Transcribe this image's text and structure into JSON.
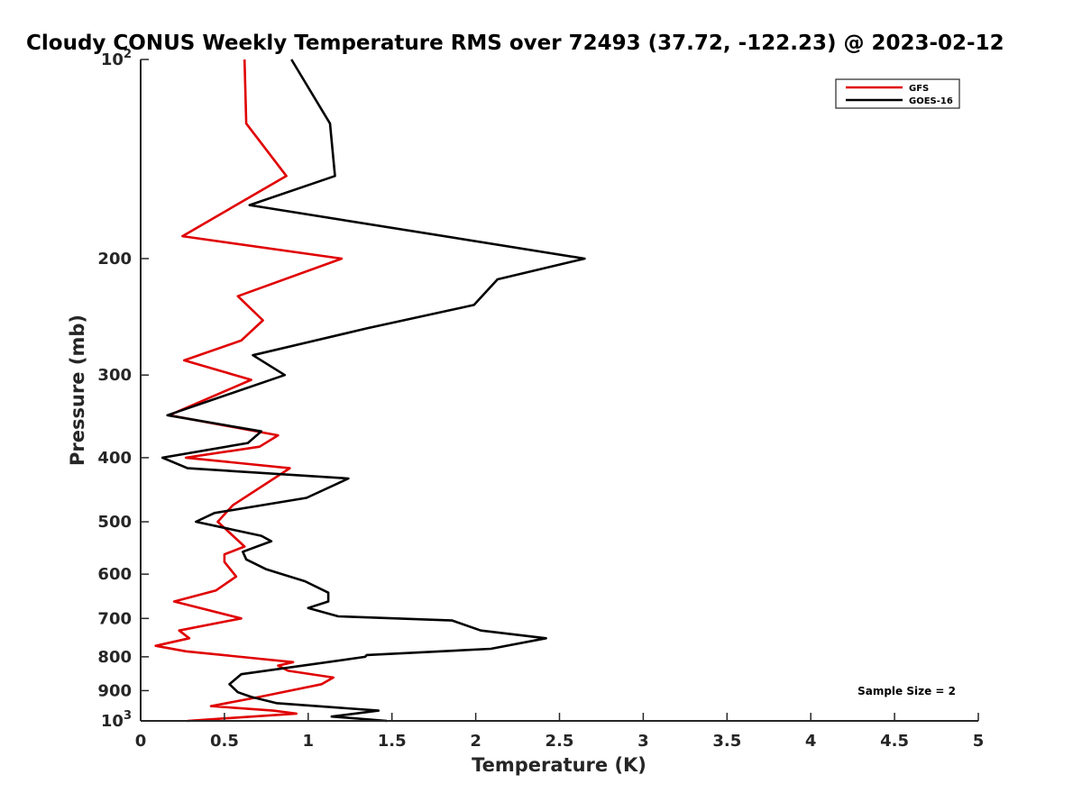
{
  "chart_data": {
    "type": "line",
    "title": "Cloudy CONUS Weekly Temperature RMS over 72493 (37.72, -122.23) @ 2023-02-12",
    "xlabel": "Temperature (K)",
    "ylabel": "Pressure (mb)",
    "xlim": [
      0,
      5
    ],
    "ylim": [
      100,
      1000
    ],
    "yscale": "log",
    "y_reversed": true,
    "grid": false,
    "legend_position": "top-right",
    "x_ticks": [
      {
        "value": 0,
        "label": "0"
      },
      {
        "value": 0.5,
        "label": "0.5"
      },
      {
        "value": 1,
        "label": "1"
      },
      {
        "value": 1.5,
        "label": "1.5"
      },
      {
        "value": 2,
        "label": "2"
      },
      {
        "value": 2.5,
        "label": "2.5"
      },
      {
        "value": 3,
        "label": "3"
      },
      {
        "value": 3.5,
        "label": "3.5"
      },
      {
        "value": 4,
        "label": "4"
      },
      {
        "value": 4.5,
        "label": "4.5"
      },
      {
        "value": 5,
        "label": "5"
      }
    ],
    "y_ticks": [
      {
        "value": 100,
        "label": "10",
        "sup": "2"
      },
      {
        "value": 200,
        "label": "200"
      },
      {
        "value": 300,
        "label": "300"
      },
      {
        "value": 400,
        "label": "400"
      },
      {
        "value": 500,
        "label": "500"
      },
      {
        "value": 600,
        "label": "600"
      },
      {
        "value": 700,
        "label": "700"
      },
      {
        "value": 800,
        "label": "800"
      },
      {
        "value": 900,
        "label": "900"
      },
      {
        "value": 1000,
        "label": "10",
        "sup": "3"
      }
    ],
    "series": [
      {
        "name": "GFS",
        "color": "#e00000",
        "points": [
          [
            0.62,
            100
          ],
          [
            0.63,
            125
          ],
          [
            0.87,
            150
          ],
          [
            0.5,
            170
          ],
          [
            0.25,
            185
          ],
          [
            1.2,
            200
          ],
          [
            0.58,
            228
          ],
          [
            0.73,
            248
          ],
          [
            0.6,
            266
          ],
          [
            0.26,
            285
          ],
          [
            0.66,
            305
          ],
          [
            0.17,
            345
          ],
          [
            0.82,
            370
          ],
          [
            0.71,
            385
          ],
          [
            0.27,
            400
          ],
          [
            0.89,
            415
          ],
          [
            0.55,
            472
          ],
          [
            0.46,
            500
          ],
          [
            0.62,
            545
          ],
          [
            0.5,
            560
          ],
          [
            0.5,
            575
          ],
          [
            0.57,
            605
          ],
          [
            0.45,
            635
          ],
          [
            0.2,
            660
          ],
          [
            0.6,
            700
          ],
          [
            0.23,
            730
          ],
          [
            0.29,
            750
          ],
          [
            0.09,
            770
          ],
          [
            0.27,
            785
          ],
          [
            0.91,
            815
          ],
          [
            0.82,
            825
          ],
          [
            0.88,
            840
          ],
          [
            1.15,
            860
          ],
          [
            1.08,
            880
          ],
          [
            0.71,
            920
          ],
          [
            0.42,
            950
          ],
          [
            0.79,
            965
          ],
          [
            0.93,
            975
          ],
          [
            0.28,
            1000
          ]
        ]
      },
      {
        "name": "GOES-16",
        "color": "#000000",
        "points": [
          [
            0.9,
            100
          ],
          [
            1.13,
            125
          ],
          [
            1.16,
            150
          ],
          [
            0.65,
            166
          ],
          [
            2.65,
            200
          ],
          [
            2.13,
            215
          ],
          [
            1.99,
            235
          ],
          [
            1.35,
            255
          ],
          [
            0.67,
            280
          ],
          [
            0.86,
            300
          ],
          [
            0.16,
            345
          ],
          [
            0.72,
            365
          ],
          [
            0.64,
            380
          ],
          [
            0.13,
            400
          ],
          [
            0.28,
            415
          ],
          [
            1.24,
            430
          ],
          [
            0.99,
            460
          ],
          [
            0.44,
            485
          ],
          [
            0.33,
            500
          ],
          [
            0.72,
            525
          ],
          [
            0.78,
            535
          ],
          [
            0.61,
            555
          ],
          [
            0.63,
            570
          ],
          [
            0.75,
            590
          ],
          [
            0.98,
            615
          ],
          [
            1.12,
            640
          ],
          [
            1.12,
            660
          ],
          [
            1.0,
            675
          ],
          [
            1.18,
            695
          ],
          [
            1.86,
            705
          ],
          [
            2.03,
            730
          ],
          [
            2.42,
            750
          ],
          [
            2.09,
            778
          ],
          [
            1.35,
            795
          ],
          [
            1.34,
            800
          ],
          [
            0.6,
            850
          ],
          [
            0.53,
            880
          ],
          [
            0.58,
            905
          ],
          [
            0.66,
            920
          ],
          [
            0.81,
            940
          ],
          [
            1.42,
            965
          ],
          [
            1.14,
            985
          ],
          [
            1.47,
            1000
          ]
        ]
      }
    ],
    "annotations": [
      {
        "text": "Sample Size = 2"
      }
    ]
  }
}
